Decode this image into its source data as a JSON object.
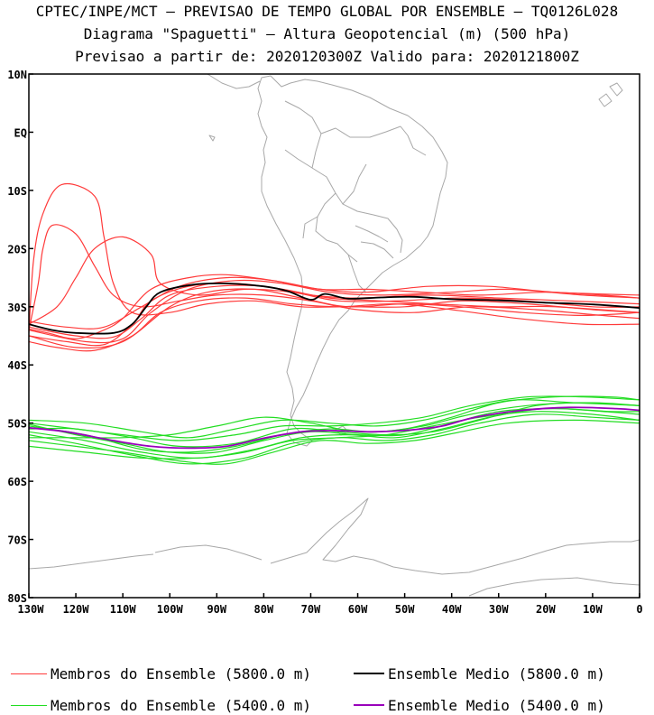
{
  "header": {
    "line1": "CPTEC/INPE/MCT – PREVISAO DE TEMPO GLOBAL POR ENSEMBLE – TQ0126L028",
    "line2": "Diagrama \"Spaguetti\" – Altura Geopotencial (m) (500 hPa)",
    "line3": "Previsao a partir de: 2020120300Z  Valido para: 2020121800Z"
  },
  "chart_data": {
    "type": "line",
    "title": "Diagrama \"Spaguetti\" – Altura Geopotencial (m) (500 hPa)",
    "x_units": "longitude (degrees, negative = W)",
    "y_units": "latitude (degrees, negative = S)",
    "xlim": [
      -130,
      0
    ],
    "ylim": [
      -80,
      10
    ],
    "xticks": [
      {
        "value": -130,
        "label": "130W"
      },
      {
        "value": -120,
        "label": "120W"
      },
      {
        "value": -110,
        "label": "110W"
      },
      {
        "value": -100,
        "label": "100W"
      },
      {
        "value": -90,
        "label": "90W"
      },
      {
        "value": -80,
        "label": "80W"
      },
      {
        "value": -70,
        "label": "70W"
      },
      {
        "value": -60,
        "label": "60W"
      },
      {
        "value": -50,
        "label": "50W"
      },
      {
        "value": -40,
        "label": "40W"
      },
      {
        "value": -30,
        "label": "30W"
      },
      {
        "value": -20,
        "label": "20W"
      },
      {
        "value": -10,
        "label": "10W"
      },
      {
        "value": 0,
        "label": "0"
      }
    ],
    "yticks": [
      {
        "value": 10,
        "label": "10N"
      },
      {
        "value": 0,
        "label": "EQ"
      },
      {
        "value": -10,
        "label": "10S"
      },
      {
        "value": -20,
        "label": "20S"
      },
      {
        "value": -30,
        "label": "30S"
      },
      {
        "value": -40,
        "label": "40S"
      },
      {
        "value": -50,
        "label": "50S"
      },
      {
        "value": -60,
        "label": "60S"
      },
      {
        "value": -70,
        "label": "70S"
      },
      {
        "value": -80,
        "label": "80S"
      }
    ],
    "colors": {
      "members_5800": "#ff3a3a",
      "mean_5800": "#000000",
      "members_5400": "#22dd22",
      "mean_5400": "#9900bb",
      "map": "#a8a8a8",
      "frame": "#000000"
    },
    "legend": {
      "members_5800": "Membros do Ensemble (5800.0 m)",
      "mean_5800": "Ensemble Medio (5800.0 m)",
      "members_5400": "Membros do Ensemble (5400.0 m)",
      "mean_5400": "Ensemble Medio (5400.0 m)"
    },
    "ensemble_mean_5800": [
      [
        -130,
        -33
      ],
      [
        -125,
        -34
      ],
      [
        -120,
        -34.5
      ],
      [
        -112,
        -34.5
      ],
      [
        -108,
        -33
      ],
      [
        -105,
        -30
      ],
      [
        -102,
        -27.5
      ],
      [
        -95,
        -26.2
      ],
      [
        -88,
        -26
      ],
      [
        -80,
        -26.5
      ],
      [
        -75,
        -27.3
      ],
      [
        -70,
        -28.8
      ],
      [
        -67,
        -27.8
      ],
      [
        -62,
        -28.6
      ],
      [
        -55,
        -28.4
      ],
      [
        -48,
        -28.3
      ],
      [
        -40,
        -28.7
      ],
      [
        -30,
        -28.9
      ],
      [
        -20,
        -29.3
      ],
      [
        -10,
        -29.6
      ],
      [
        0,
        -30.2
      ]
    ],
    "ensemble_mean_5400": [
      [
        -130,
        -50.8
      ],
      [
        -122,
        -51.5
      ],
      [
        -112,
        -53
      ],
      [
        -104,
        -54
      ],
      [
        -96,
        -54.3
      ],
      [
        -88,
        -54
      ],
      [
        -80,
        -52.6
      ],
      [
        -72,
        -51.5
      ],
      [
        -65,
        -51.3
      ],
      [
        -57,
        -51.5
      ],
      [
        -49,
        -51.2
      ],
      [
        -42,
        -50.5
      ],
      [
        -35,
        -49
      ],
      [
        -25,
        -47.8
      ],
      [
        -15,
        -47.3
      ],
      [
        -5,
        -47.5
      ],
      [
        0,
        -47.8
      ]
    ],
    "members_5800": [
      [
        [
          -130,
          -33.5
        ],
        [
          -120,
          -35
        ],
        [
          -112,
          -35.2
        ],
        [
          -106,
          -32
        ],
        [
          -100,
          -28
        ],
        [
          -90,
          -26.5
        ],
        [
          -80,
          -26.5
        ],
        [
          -70,
          -28
        ],
        [
          -60,
          -28.5
        ],
        [
          -45,
          -28
        ],
        [
          -30,
          -28.5
        ],
        [
          -15,
          -29
        ],
        [
          0,
          -29.5
        ]
      ],
      [
        [
          -130,
          -34
        ],
        [
          -118,
          -36
        ],
        [
          -110,
          -35.5
        ],
        [
          -104,
          -31
        ],
        [
          -96,
          -27
        ],
        [
          -86,
          -25.5
        ],
        [
          -76,
          -26
        ],
        [
          -66,
          -27.5
        ],
        [
          -55,
          -28
        ],
        [
          -40,
          -27.5
        ],
        [
          -28,
          -27
        ],
        [
          -12,
          -28
        ],
        [
          0,
          -28.5
        ]
      ],
      [
        [
          -130,
          -35
        ],
        [
          -120,
          -37
        ],
        [
          -110,
          -36
        ],
        [
          -100,
          -30
        ],
        [
          -92,
          -27.5
        ],
        [
          -82,
          -27
        ],
        [
          -72,
          -28.5
        ],
        [
          -62,
          -30
        ],
        [
          -50,
          -29.5
        ],
        [
          -38,
          -30
        ],
        [
          -25,
          -31
        ],
        [
          -12,
          -31.5
        ],
        [
          0,
          -31
        ]
      ],
      [
        [
          -130,
          -32.5
        ],
        [
          -122,
          -33.5
        ],
        [
          -114,
          -33.5
        ],
        [
          -106,
          -30
        ],
        [
          -98,
          -26.5
        ],
        [
          -88,
          -25
        ],
        [
          -78,
          -25.5
        ],
        [
          -68,
          -27
        ],
        [
          -58,
          -27.5
        ],
        [
          -45,
          -26.5
        ],
        [
          -32,
          -26.5
        ],
        [
          -18,
          -27.5
        ],
        [
          0,
          -28
        ]
      ],
      [
        [
          -130,
          -36
        ],
        [
          -124,
          -37
        ],
        [
          -116,
          -37.5
        ],
        [
          -108,
          -35
        ],
        [
          -102,
          -31
        ],
        [
          -94,
          -29
        ],
        [
          -84,
          -28.5
        ],
        [
          -74,
          -29.5
        ],
        [
          -64,
          -30
        ],
        [
          -52,
          -29.5
        ],
        [
          -40,
          -30.5
        ],
        [
          -26,
          -32
        ],
        [
          -12,
          -33
        ],
        [
          0,
          -33
        ]
      ],
      [
        [
          -130,
          -33
        ],
        [
          -124,
          -30
        ],
        [
          -120,
          -25
        ],
        [
          -116,
          -20
        ],
        [
          -110,
          -18
        ],
        [
          -104,
          -21
        ],
        [
          -102,
          -26
        ],
        [
          -94,
          -28
        ],
        [
          -84,
          -27
        ],
        [
          -74,
          -27.5
        ],
        [
          -64,
          -29
        ],
        [
          -52,
          -29
        ],
        [
          -38,
          -28.5
        ],
        [
          -24,
          -29
        ],
        [
          -10,
          -30
        ],
        [
          0,
          -30
        ]
      ],
      [
        [
          -130,
          -34
        ],
        [
          -128,
          -26
        ],
        [
          -127,
          -20
        ],
        [
          -125,
          -16
        ],
        [
          -120,
          -17.5
        ],
        [
          -116,
          -23
        ],
        [
          -112,
          -28
        ],
        [
          -106,
          -30
        ],
        [
          -98,
          -29
        ],
        [
          -90,
          -28
        ],
        [
          -80,
          -28
        ],
        [
          -70,
          -29
        ],
        [
          -60,
          -30.5
        ],
        [
          -48,
          -31
        ],
        [
          -36,
          -30
        ],
        [
          -22,
          -30.5
        ],
        [
          -8,
          -31.5
        ],
        [
          0,
          -32
        ]
      ],
      [
        [
          -130,
          -34.5
        ],
        [
          -129,
          -22
        ],
        [
          -127,
          -14
        ],
        [
          -123,
          -9
        ],
        [
          -116,
          -11
        ],
        [
          -114,
          -18
        ],
        [
          -112,
          -26
        ],
        [
          -108,
          -31
        ],
        [
          -100,
          -31
        ],
        [
          -92,
          -29.5
        ],
        [
          -82,
          -29
        ],
        [
          -72,
          -30
        ],
        [
          -62,
          -30
        ],
        [
          -50,
          -30
        ],
        [
          -38,
          -29
        ],
        [
          -24,
          -29.5
        ],
        [
          -10,
          -30.5
        ],
        [
          0,
          -31
        ]
      ],
      [
        [
          -130,
          -35
        ],
        [
          -122,
          -36
        ],
        [
          -114,
          -36.5
        ],
        [
          -108,
          -33
        ],
        [
          -104,
          -29
        ],
        [
          -96,
          -26.5
        ],
        [
          -86,
          -26
        ],
        [
          -76,
          -27
        ],
        [
          -66,
          -28.5
        ],
        [
          -55,
          -29
        ],
        [
          -44,
          -29.5
        ],
        [
          -30,
          -30
        ],
        [
          -18,
          -30
        ],
        [
          0,
          -31
        ]
      ],
      [
        [
          -130,
          -33.8
        ],
        [
          -126,
          -34.5
        ],
        [
          -120,
          -35.5
        ],
        [
          -114,
          -34
        ],
        [
          -110,
          -32
        ],
        [
          -104,
          -27
        ],
        [
          -96,
          -25
        ],
        [
          -88,
          -24.5
        ],
        [
          -78,
          -25.5
        ],
        [
          -68,
          -27
        ],
        [
          -58,
          -27
        ],
        [
          -46,
          -27.5
        ],
        [
          -34,
          -28
        ],
        [
          -20,
          -27.5
        ],
        [
          -8,
          -28
        ],
        [
          0,
          -28.5
        ]
      ]
    ],
    "members_5400": [
      [
        [
          -130,
          -50.5
        ],
        [
          -118,
          -52
        ],
        [
          -106,
          -54.5
        ],
        [
          -96,
          -55
        ],
        [
          -86,
          -54
        ],
        [
          -76,
          -52
        ],
        [
          -66,
          -51
        ],
        [
          -56,
          -51.5
        ],
        [
          -46,
          -50.5
        ],
        [
          -36,
          -48.5
        ],
        [
          -24,
          -47
        ],
        [
          -12,
          -46.5
        ],
        [
          0,
          -47
        ]
      ],
      [
        [
          -130,
          -51.5
        ],
        [
          -118,
          -53
        ],
        [
          -106,
          -55
        ],
        [
          -94,
          -56
        ],
        [
          -82,
          -54.5
        ],
        [
          -72,
          -52.5
        ],
        [
          -62,
          -52
        ],
        [
          -52,
          -52.5
        ],
        [
          -42,
          -51
        ],
        [
          -32,
          -49
        ],
        [
          -20,
          -47.5
        ],
        [
          -8,
          -48
        ],
        [
          0,
          -48.5
        ]
      ],
      [
        [
          -130,
          -50
        ],
        [
          -120,
          -51
        ],
        [
          -110,
          -52
        ],
        [
          -98,
          -53
        ],
        [
          -86,
          -52
        ],
        [
          -76,
          -50.5
        ],
        [
          -66,
          -50.5
        ],
        [
          -56,
          -50
        ],
        [
          -46,
          -49
        ],
        [
          -36,
          -47
        ],
        [
          -24,
          -45.5
        ],
        [
          -12,
          -45.5
        ],
        [
          0,
          -46
        ]
      ],
      [
        [
          -130,
          -52
        ],
        [
          -120,
          -53.5
        ],
        [
          -108,
          -55.5
        ],
        [
          -96,
          -57
        ],
        [
          -84,
          -56
        ],
        [
          -74,
          -53.5
        ],
        [
          -64,
          -52.5
        ],
        [
          -54,
          -53
        ],
        [
          -44,
          -52
        ],
        [
          -34,
          -50
        ],
        [
          -22,
          -48.5
        ],
        [
          -10,
          -49
        ],
        [
          0,
          -49.5
        ]
      ],
      [
        [
          -130,
          -49.5
        ],
        [
          -118,
          -50
        ],
        [
          -106,
          -51.5
        ],
        [
          -96,
          -52.5
        ],
        [
          -86,
          -51
        ],
        [
          -76,
          -49.5
        ],
        [
          -66,
          -50
        ],
        [
          -56,
          -50.5
        ],
        [
          -46,
          -49.5
        ],
        [
          -36,
          -47.5
        ],
        [
          -26,
          -46
        ],
        [
          -14,
          -46.5
        ],
        [
          0,
          -47
        ]
      ],
      [
        [
          -130,
          -53
        ],
        [
          -120,
          -54
        ],
        [
          -110,
          -55
        ],
        [
          -98,
          -56.5
        ],
        [
          -88,
          -57
        ],
        [
          -78,
          -55
        ],
        [
          -68,
          -53
        ],
        [
          -58,
          -53.5
        ],
        [
          -48,
          -53
        ],
        [
          -38,
          -51.5
        ],
        [
          -28,
          -50
        ],
        [
          -14,
          -49.5
        ],
        [
          0,
          -50
        ]
      ],
      [
        [
          -130,
          -51
        ],
        [
          -120,
          -51
        ],
        [
          -108,
          -52.5
        ],
        [
          -98,
          -54
        ],
        [
          -86,
          -53.5
        ],
        [
          -74,
          -51
        ],
        [
          -64,
          -51.5
        ],
        [
          -54,
          -52
        ],
        [
          -44,
          -51.5
        ],
        [
          -34,
          -49.5
        ],
        [
          -22,
          -47
        ],
        [
          -10,
          -46.5
        ],
        [
          0,
          -47
        ]
      ],
      [
        [
          -130,
          -50.2
        ],
        [
          -120,
          -52
        ],
        [
          -110,
          -53.5
        ],
        [
          -100,
          -55
        ],
        [
          -90,
          -55
        ],
        [
          -80,
          -53
        ],
        [
          -70,
          -51.5
        ],
        [
          -60,
          -52
        ],
        [
          -50,
          -52
        ],
        [
          -40,
          -50
        ],
        [
          -30,
          -48
        ],
        [
          -18,
          -47.5
        ],
        [
          -6,
          -48
        ],
        [
          0,
          -48
        ]
      ],
      [
        [
          -130,
          -52.5
        ],
        [
          -120,
          -52.5
        ],
        [
          -110,
          -52.5
        ],
        [
          -100,
          -52
        ],
        [
          -90,
          -50.5
        ],
        [
          -80,
          -49
        ],
        [
          -70,
          -50
        ],
        [
          -60,
          -51.5
        ],
        [
          -50,
          -51
        ],
        [
          -40,
          -49
        ],
        [
          -30,
          -46.5
        ],
        [
          -18,
          -45.5
        ],
        [
          -6,
          -45.5
        ],
        [
          0,
          -46
        ]
      ],
      [
        [
          -130,
          -54
        ],
        [
          -118,
          -55
        ],
        [
          -106,
          -56
        ],
        [
          -94,
          -56
        ],
        [
          -84,
          -55
        ],
        [
          -74,
          -53
        ],
        [
          -64,
          -52.5
        ],
        [
          -54,
          -52
        ],
        [
          -44,
          -50.5
        ],
        [
          -34,
          -49
        ],
        [
          -22,
          -48
        ],
        [
          -10,
          -48.5
        ],
        [
          0,
          -49.5
        ]
      ]
    ]
  }
}
